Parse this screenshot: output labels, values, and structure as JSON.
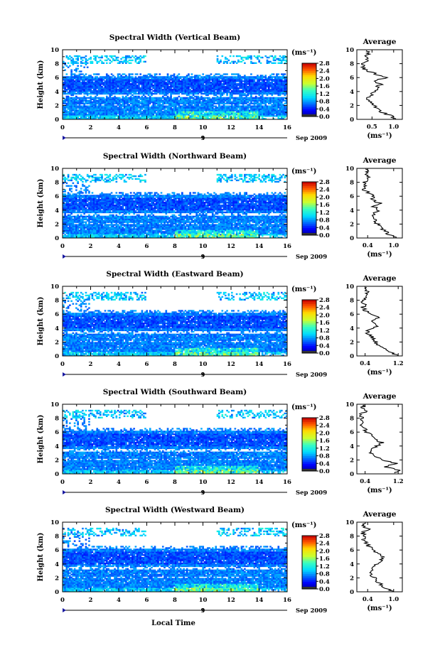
{
  "x_axis_label": "Local Time",
  "chart_data": [
    {
      "type": "heatmap",
      "title": "Spectral Width (Vertical Beam)",
      "ylabel": "Height (km)",
      "xlabel": "Local Time",
      "date_label": "Sep 2009",
      "day_label": "9",
      "xlim": [
        0,
        16
      ],
      "ylim": [
        0,
        10
      ],
      "x_ticks": [
        0,
        2,
        4,
        6,
        8,
        10,
        12,
        14,
        16
      ],
      "y_ticks": [
        0,
        2,
        4,
        6,
        8,
        10
      ],
      "colorbar": {
        "unit": "(ms⁻¹)",
        "ticks": [
          "0.0",
          "0.4",
          "0.8",
          "1.2",
          "1.6",
          "2.0",
          "2.4",
          "2.8"
        ],
        "range": [
          0,
          2.8
        ]
      },
      "average": {
        "title": "Average",
        "xlabel": "(ms⁻¹)",
        "x_ticks": [
          "0.5",
          "1.0"
        ],
        "xlim": [
          0.15,
          1.2
        ],
        "height_km": [
          0.1,
          0.5,
          1,
          1.5,
          2,
          2.5,
          3,
          3.5,
          4,
          4.5,
          5,
          5.5,
          6,
          6.5,
          7,
          7.5,
          8,
          8.5,
          9,
          9.5,
          9.9
        ],
        "values": [
          1.05,
          0.95,
          0.75,
          0.62,
          0.55,
          0.45,
          0.4,
          0.5,
          0.55,
          0.6,
          0.7,
          0.55,
          0.82,
          0.6,
          0.35,
          0.3,
          0.28,
          0.4,
          0.35,
          0.42,
          0.38
        ]
      }
    },
    {
      "type": "heatmap",
      "title": "Spectral Width (Northward Beam)",
      "ylabel": "Height (km)",
      "xlabel": "Local Time",
      "date_label": "Sep 2009",
      "day_label": "9",
      "xlim": [
        0,
        16
      ],
      "ylim": [
        0,
        10
      ],
      "x_ticks": [
        0,
        2,
        4,
        6,
        8,
        10,
        12,
        14,
        16
      ],
      "y_ticks": [
        0,
        2,
        4,
        6,
        8,
        10
      ],
      "colorbar": {
        "unit": "(ms⁻¹)",
        "ticks": [
          "0.0",
          "0.4",
          "0.8",
          "1.2",
          "1.6",
          "2.0",
          "2.4",
          "2.8"
        ],
        "range": [
          0,
          2.8
        ]
      },
      "average": {
        "title": "Average",
        "xlabel": "(ms⁻¹)",
        "x_ticks": [
          "0.4",
          "1.0"
        ],
        "xlim": [
          0.15,
          1.2
        ],
        "height_km": [
          0.1,
          0.5,
          1,
          1.5,
          2,
          2.5,
          3,
          3.5,
          4,
          4.5,
          5,
          5.5,
          6,
          6.5,
          7,
          7.5,
          8,
          8.5,
          9,
          9.5,
          9.9
        ],
        "values": [
          1.1,
          0.9,
          0.8,
          0.7,
          0.62,
          0.58,
          0.48,
          0.52,
          0.65,
          0.55,
          0.68,
          0.5,
          0.55,
          0.42,
          0.3,
          0.38,
          0.3,
          0.45,
          0.35,
          0.4,
          0.35
        ]
      }
    },
    {
      "type": "heatmap",
      "title": "Spectral Width (Eastward Beam)",
      "ylabel": "Height (km)",
      "xlabel": "Local Time",
      "date_label": "Sep 2009",
      "day_label": "9",
      "xlim": [
        0,
        16
      ],
      "ylim": [
        0,
        10
      ],
      "x_ticks": [
        0,
        2,
        4,
        6,
        8,
        10,
        12,
        14,
        16
      ],
      "y_ticks": [
        0,
        2,
        4,
        6,
        8,
        10
      ],
      "colorbar": {
        "unit": "(ms⁻¹)",
        "ticks": [
          "0.0",
          "0.4",
          "0.8",
          "1.2",
          "1.6",
          "2.0",
          "2.4",
          "2.8"
        ],
        "range": [
          0,
          2.8
        ]
      },
      "average": {
        "title": "Average",
        "xlabel": "(ms⁻¹)",
        "x_ticks": [
          "0.4",
          "1.2"
        ],
        "xlim": [
          0.2,
          1.3
        ],
        "height_km": [
          0.1,
          0.5,
          1,
          1.5,
          2,
          2.5,
          3,
          3.5,
          4,
          4.5,
          5,
          5.5,
          6,
          6.5,
          7,
          7.5,
          8,
          8.5,
          9,
          9.5,
          9.9
        ],
        "values": [
          1.15,
          1.0,
          0.9,
          0.75,
          0.65,
          0.6,
          0.5,
          0.45,
          0.6,
          0.7,
          0.55,
          0.72,
          0.5,
          0.4,
          0.35,
          0.38,
          0.33,
          0.45,
          0.4,
          0.48,
          0.42
        ]
      }
    },
    {
      "type": "heatmap",
      "title": "Spectral Width (Southward Beam)",
      "ylabel": "Height (km)",
      "xlabel": "Local Time",
      "date_label": "Sep 2009",
      "day_label": "9",
      "xlim": [
        0,
        16
      ],
      "ylim": [
        0,
        10
      ],
      "x_ticks": [
        0,
        2,
        4,
        6,
        8,
        10,
        12,
        14,
        16
      ],
      "y_ticks": [
        0,
        2,
        4,
        6,
        8,
        10
      ],
      "colorbar": {
        "unit": "(ms⁻¹)",
        "ticks": [
          "0.0",
          "0.4",
          "0.8",
          "1.2",
          "1.6",
          "2.0",
          "2.4",
          "2.8"
        ],
        "range": [
          0,
          2.8
        ]
      },
      "average": {
        "title": "Average",
        "xlabel": "(ms⁻¹)",
        "x_ticks": [
          "0.4",
          "1.2"
        ],
        "xlim": [
          0.2,
          1.3
        ],
        "height_km": [
          0.1,
          0.5,
          1,
          1.5,
          2,
          2.5,
          3,
          3.5,
          4,
          4.5,
          5,
          5.5,
          6,
          6.5,
          7,
          7.5,
          8,
          8.5,
          9,
          9.5,
          9.9
        ],
        "values": [
          1.1,
          1.2,
          0.9,
          1.15,
          0.8,
          0.65,
          0.5,
          0.55,
          0.7,
          0.8,
          0.65,
          0.55,
          0.45,
          0.38,
          0.33,
          0.3,
          0.35,
          0.3,
          0.4,
          0.35,
          0.38
        ]
      }
    },
    {
      "type": "heatmap",
      "title": "Spectral Width (Westward Beam)",
      "ylabel": "Height (km)",
      "xlabel": "Local Time",
      "date_label": "Sep 2009",
      "day_label": "9",
      "xlim": [
        0,
        16
      ],
      "ylim": [
        0,
        10
      ],
      "x_ticks": [
        0,
        2,
        4,
        6,
        8,
        10,
        12,
        14,
        16
      ],
      "y_ticks": [
        0,
        2,
        4,
        6,
        8,
        10
      ],
      "colorbar": {
        "unit": "(ms⁻¹)",
        "ticks": [
          "0.0",
          "0.4",
          "0.8",
          "1.2",
          "1.6",
          "2.0",
          "2.4",
          "2.8"
        ],
        "range": [
          0,
          2.8
        ]
      },
      "average": {
        "title": "Average",
        "xlabel": "(ms⁻¹)",
        "x_ticks": [
          "0.4",
          "1.0"
        ],
        "xlim": [
          0.15,
          1.2
        ],
        "height_km": [
          0.1,
          0.5,
          1,
          1.5,
          2,
          2.5,
          3,
          3.5,
          4,
          4.5,
          5,
          5.5,
          6,
          6.5,
          7,
          7.5,
          8,
          8.5,
          9,
          9.5,
          9.9
        ],
        "values": [
          0.95,
          0.85,
          0.7,
          0.62,
          0.55,
          0.48,
          0.45,
          0.5,
          0.6,
          0.7,
          0.8,
          0.65,
          0.55,
          0.42,
          0.38,
          0.3,
          0.35,
          0.28,
          0.4,
          0.32,
          0.36
        ]
      }
    }
  ]
}
